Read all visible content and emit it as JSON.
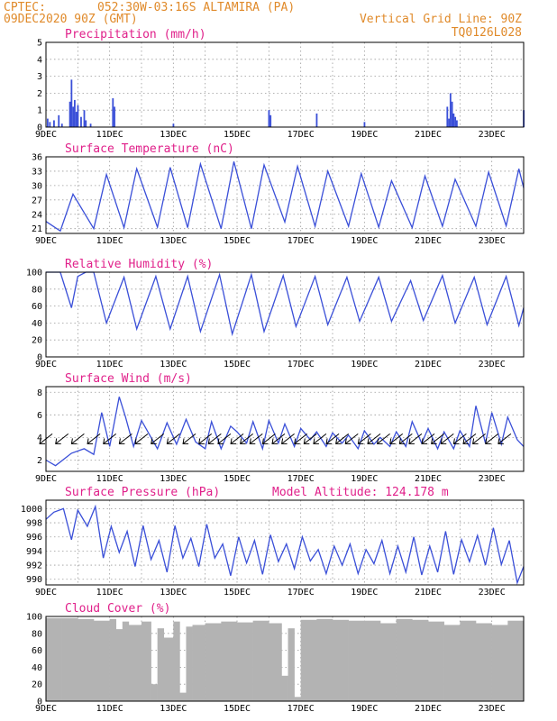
{
  "header": {
    "source": "CPTEC:",
    "location": "052:30W-03:16S  ALTAMIRA (PA)",
    "run": "09DEC2020 90Z (GMT)",
    "grid_note": "Vertical Grid Line: 90Z",
    "model": "TQ0126L028"
  },
  "x_axis_labels": [
    "9DEC",
    "11DEC",
    "13DEC",
    "15DEC",
    "17DEC",
    "19DEC",
    "21DEC",
    "23DEC"
  ],
  "chart_data": [
    {
      "id": "precip",
      "type": "bar",
      "title": "Precipitation (mm/h)",
      "ylim": [
        0,
        5
      ],
      "yticks": [
        0,
        1,
        2,
        3,
        4,
        5
      ],
      "x_days": [
        0.05,
        0.12,
        0.25,
        0.4,
        0.5,
        0.75,
        0.8,
        0.85,
        0.9,
        0.95,
        1.0,
        1.1,
        1.2,
        1.25,
        1.4,
        2.1,
        2.15,
        4.0,
        7.0,
        7.05,
        8.5,
        10.0,
        12.6,
        12.65,
        12.7,
        12.75,
        12.8,
        12.85,
        12.9,
        15.0
      ],
      "values": [
        0.5,
        0.3,
        0.4,
        0.7,
        0.2,
        1.5,
        2.8,
        1.2,
        1.6,
        0.9,
        1.3,
        0.6,
        1.0,
        0.4,
        0.2,
        1.7,
        1.2,
        0.2,
        1.0,
        0.7,
        0.8,
        0.3,
        1.2,
        0.5,
        2.0,
        1.5,
        0.8,
        0.6,
        0.4,
        1.0
      ]
    },
    {
      "id": "temp",
      "type": "line",
      "title": "Surface Temperature (nC)",
      "ylim": [
        20,
        36
      ],
      "yticks": [
        21,
        24,
        27,
        30,
        33,
        36
      ],
      "x_days": [
        0,
        0.45,
        0.85,
        1.5,
        1.9,
        2.45,
        2.85,
        3.5,
        3.9,
        4.45,
        4.85,
        5.5,
        5.9,
        6.45,
        6.85,
        7.5,
        7.9,
        8.45,
        8.85,
        9.5,
        9.9,
        10.45,
        10.85,
        11.5,
        11.9,
        12.45,
        12.85,
        13.5,
        13.9,
        14.45,
        14.85,
        15.0
      ],
      "values": [
        22.5,
        20.5,
        28.2,
        21.0,
        32.3,
        21.2,
        33.5,
        21.3,
        33.8,
        21.2,
        34.5,
        21.0,
        35.0,
        21.0,
        34.3,
        22.4,
        34.0,
        21.5,
        33.0,
        21.5,
        32.5,
        21.3,
        31.0,
        21.2,
        32.0,
        21.5,
        31.3,
        21.5,
        32.8,
        21.6,
        33.5,
        29.5
      ]
    },
    {
      "id": "rh",
      "type": "line",
      "title": "Relative Humidity (%)",
      "ylim": [
        0,
        100
      ],
      "yticks": [
        0,
        20,
        40,
        60,
        80,
        100
      ],
      "x_days": [
        0,
        0.45,
        0.8,
        1.0,
        1.25,
        1.5,
        1.9,
        2.45,
        2.85,
        3.45,
        3.9,
        4.45,
        4.85,
        5.45,
        5.85,
        6.45,
        6.85,
        7.45,
        7.85,
        8.45,
        8.85,
        9.45,
        9.85,
        10.45,
        10.85,
        11.45,
        11.85,
        12.45,
        12.85,
        13.45,
        13.85,
        14.45,
        14.85,
        15.0
      ],
      "values": [
        100,
        100,
        58,
        95,
        100,
        100,
        40,
        94,
        33,
        95,
        33,
        95,
        30,
        97,
        27,
        97,
        30,
        96,
        36,
        95,
        38,
        94,
        42,
        94,
        42,
        90,
        43,
        96,
        40,
        94,
        38,
        95,
        37,
        58
      ]
    },
    {
      "id": "wind",
      "type": "line",
      "title": "Surface Wind (m/s)",
      "ylim": [
        1,
        8.5
      ],
      "yticks": [
        2,
        4,
        6,
        8
      ],
      "x_days": [
        0,
        0.3,
        0.8,
        1.2,
        1.5,
        1.75,
        2.0,
        2.3,
        2.5,
        2.75,
        3.0,
        3.3,
        3.5,
        3.8,
        4.1,
        4.4,
        4.7,
        5.0,
        5.2,
        5.5,
        5.8,
        6.0,
        6.3,
        6.5,
        6.8,
        7.0,
        7.3,
        7.5,
        7.8,
        8.0,
        8.3,
        8.5,
        8.8,
        9.0,
        9.3,
        9.5,
        9.8,
        10.0,
        10.3,
        10.5,
        10.8,
        11.0,
        11.3,
        11.5,
        11.8,
        12.0,
        12.3,
        12.5,
        12.8,
        13.0,
        13.3,
        13.5,
        13.8,
        14.0,
        14.3,
        14.5,
        14.8,
        15.0
      ],
      "values": [
        2.0,
        1.5,
        2.6,
        3.0,
        2.5,
        6.2,
        3.2,
        7.6,
        5.8,
        3.2,
        5.5,
        4.0,
        3.0,
        5.3,
        3.4,
        5.6,
        3.6,
        3.0,
        5.4,
        3.0,
        5.0,
        4.5,
        3.5,
        5.4,
        3.0,
        5.5,
        3.5,
        5.2,
        3.2,
        4.8,
        3.8,
        4.5,
        3.2,
        4.4,
        3.5,
        4.2,
        3.0,
        4.6,
        3.4,
        4.0,
        3.2,
        4.5,
        3.2,
        5.4,
        3.5,
        4.8,
        3.0,
        4.5,
        3.0,
        4.6,
        3.2,
        6.8,
        3.5,
        6.2,
        3.4,
        5.8,
        3.8,
        3.2
      ],
      "vector_x_days": [
        0.2,
        0.7,
        1.2,
        1.7,
        2.2,
        2.7,
        3.2,
        3.7,
        4.2,
        4.7,
        5.2,
        5.5,
        5.8,
        6.2,
        6.5,
        6.8,
        7.2,
        7.5,
        7.8,
        8.2,
        8.5,
        8.8,
        9.2,
        9.5,
        9.8,
        10.2,
        10.5,
        10.8,
        11.2,
        11.5,
        11.8,
        12.2,
        12.5,
        12.8,
        13.2,
        13.5,
        13.8,
        14.2,
        14.6
      ]
    },
    {
      "id": "pres",
      "type": "line",
      "title": "Surface Pressure (hPa)",
      "annotation": "Model Altitude: 124.178 m",
      "ylim": [
        989.2,
        1001.2
      ],
      "yticks": [
        990,
        992,
        994,
        996,
        998,
        1000
      ],
      "x_days": [
        0,
        0.25,
        0.55,
        0.8,
        1.0,
        1.3,
        1.55,
        1.8,
        2.05,
        2.3,
        2.55,
        2.8,
        3.05,
        3.3,
        3.55,
        3.8,
        4.05,
        4.3,
        4.55,
        4.8,
        5.05,
        5.3,
        5.55,
        5.8,
        6.05,
        6.3,
        6.55,
        6.8,
        7.05,
        7.3,
        7.55,
        7.8,
        8.05,
        8.3,
        8.55,
        8.8,
        9.05,
        9.3,
        9.55,
        9.8,
        10.05,
        10.3,
        10.55,
        10.8,
        11.05,
        11.3,
        11.55,
        11.8,
        12.05,
        12.3,
        12.55,
        12.8,
        13.05,
        13.3,
        13.55,
        13.8,
        14.05,
        14.3,
        14.55,
        14.8,
        15.0
      ],
      "values": [
        998.5,
        999.5,
        1000.0,
        995.6,
        999.8,
        997.5,
        1000.3,
        993.0,
        997.5,
        993.8,
        996.8,
        991.8,
        997.6,
        992.8,
        995.5,
        991.0,
        997.6,
        993.0,
        995.8,
        991.8,
        997.8,
        993.0,
        995.0,
        990.5,
        996.0,
        992.3,
        995.5,
        990.7,
        996.3,
        992.5,
        995.0,
        991.5,
        996.0,
        992.6,
        994.2,
        990.8,
        994.7,
        992.0,
        995.0,
        990.8,
        994.2,
        992.2,
        995.5,
        990.8,
        994.7,
        991.0,
        996.0,
        990.6,
        994.7,
        991.0,
        996.8,
        990.7,
        995.6,
        992.5,
        996.2,
        992.0,
        997.3,
        992.1,
        995.5,
        989.5,
        991.8
      ]
    },
    {
      "id": "cloud",
      "type": "area",
      "title": "Cloud Cover (%)",
      "ylim": [
        0,
        100
      ],
      "yticks": [
        0,
        20,
        40,
        60,
        80,
        100
      ],
      "x_days": [
        0,
        0.5,
        1.0,
        1.5,
        2.0,
        2.2,
        2.4,
        2.6,
        3.0,
        3.3,
        3.5,
        3.7,
        4.0,
        4.2,
        4.4,
        4.6,
        5.0,
        5.5,
        6.0,
        6.5,
        7.0,
        7.4,
        7.6,
        7.8,
        8.0,
        8.5,
        9.0,
        9.5,
        10.0,
        10.5,
        11.0,
        11.5,
        12.0,
        12.5,
        13.0,
        13.5,
        14.0,
        14.5,
        15.0
      ],
      "values": [
        98,
        98,
        97,
        95,
        97,
        85,
        94,
        90,
        94,
        20,
        86,
        75,
        94,
        10,
        88,
        90,
        92,
        94,
        93,
        95,
        92,
        30,
        86,
        5,
        96,
        97,
        96,
        95,
        95,
        92,
        97,
        96,
        94,
        90,
        95,
        92,
        90,
        95,
        96
      ]
    }
  ]
}
